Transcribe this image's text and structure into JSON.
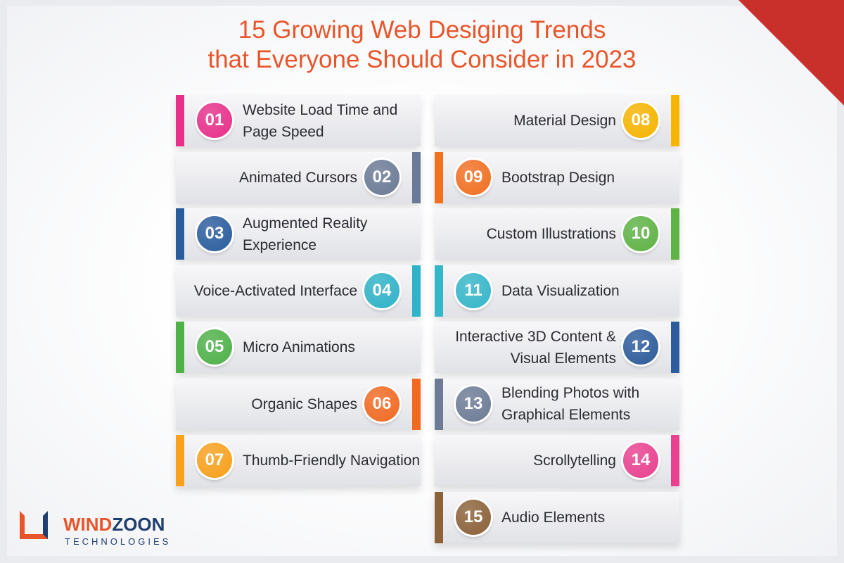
{
  "title": [
    "15 Growing Web Desiging Trends",
    "that Everyone Should Consider in 2023"
  ],
  "items": [
    {
      "number": "01",
      "lines": [
        "Website Load Time and",
        "Page Speed"
      ],
      "color": "#e8308a"
    },
    {
      "number": "02",
      "lines": [
        "Animated Cursors"
      ],
      "color": "#6b7a96"
    },
    {
      "number": "03",
      "lines": [
        "Augmented Reality",
        "Experience"
      ],
      "color": "#2a5d9e"
    },
    {
      "number": "04",
      "lines": [
        "Voice-Activated Interface"
      ],
      "color": "#2fb3c8"
    },
    {
      "number": "05",
      "lines": [
        "Micro Animations"
      ],
      "color": "#4fb248"
    },
    {
      "number": "06",
      "lines": [
        "Organic Shapes"
      ],
      "color": "#f26a21"
    },
    {
      "number": "07",
      "lines": [
        "Thumb-Friendly Navigation"
      ],
      "color": "#f9a11b"
    },
    {
      "number": "08",
      "lines": [
        "Material Design"
      ],
      "color": "#f7b500"
    },
    {
      "number": "09",
      "lines": [
        "Bootstrap Design"
      ],
      "color": "#f37021"
    },
    {
      "number": "10",
      "lines": [
        "Custom Illustrations"
      ],
      "color": "#5fb345"
    },
    {
      "number": "11",
      "lines": [
        "Data Visualization"
      ],
      "color": "#35b7c9"
    },
    {
      "number": "12",
      "lines": [
        "Interactive 3D Content &",
        "Visual Elements"
      ],
      "color": "#2c5c9b"
    },
    {
      "number": "13",
      "lines": [
        "Blending Photos with",
        "Graphical Elements"
      ],
      "color": "#6d7b96"
    },
    {
      "number": "14",
      "lines": [
        "Scrollytelling"
      ],
      "color": "#e9418f"
    },
    {
      "number": "15",
      "lines": [
        "Audio Elements"
      ],
      "color": "#8c6239"
    }
  ],
  "logo": {
    "brand_parts": [
      "WIND",
      "ZOON"
    ],
    "tagline": "TECHNOLOGIES"
  }
}
